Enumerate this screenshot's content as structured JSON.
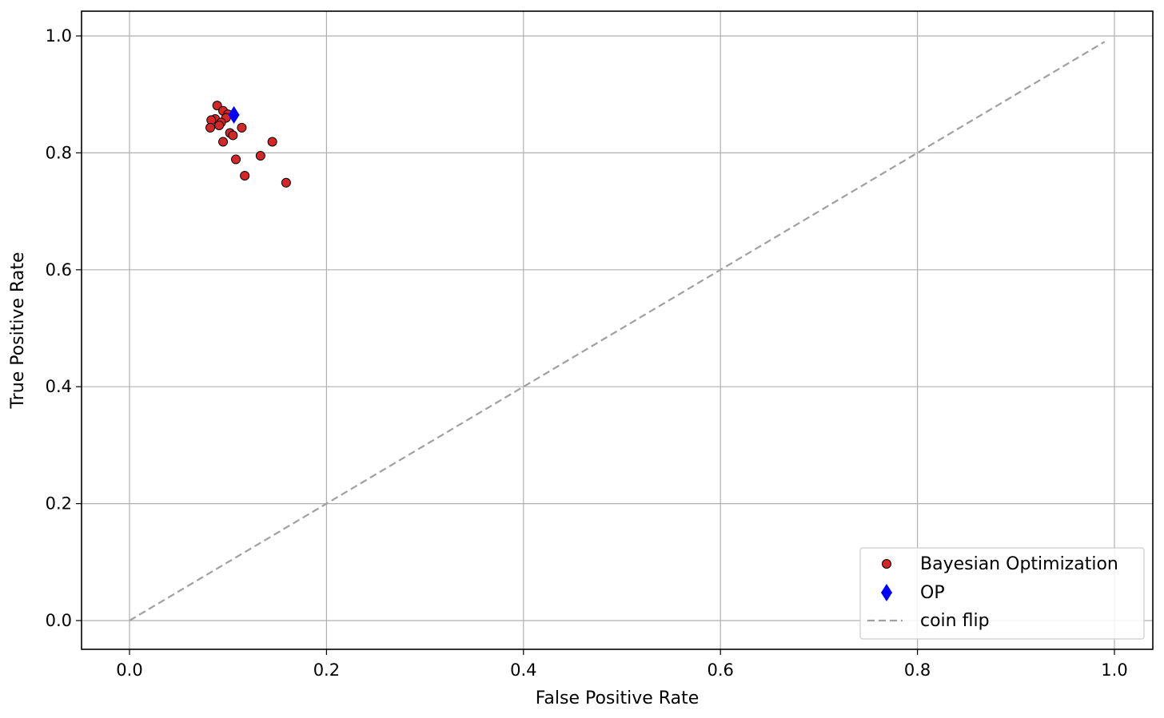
{
  "chart_data": {
    "type": "scatter",
    "xlabel": "False Positive Rate",
    "ylabel": "True Positive Rate",
    "xlim": [
      -0.05,
      1.04
    ],
    "ylim": [
      -0.05,
      1.04
    ],
    "xticks": [
      0.0,
      0.2,
      0.4,
      0.6,
      0.8,
      1.0
    ],
    "yticks": [
      0.0,
      0.2,
      0.4,
      0.6,
      0.8,
      1.0
    ],
    "xtick_labels": [
      "0.0",
      "0.2",
      "0.4",
      "0.6",
      "0.8",
      "1.0"
    ],
    "ytick_labels": [
      "0.0",
      "0.2",
      "0.4",
      "0.6",
      "0.8",
      "1.0"
    ],
    "grid": true,
    "legend_position": "lower-right",
    "series": [
      {
        "name": "Bayesian Optimization",
        "marker": "circle",
        "color": "#d62728",
        "edge_color": "#000000",
        "points": [
          [
            0.089,
            0.881
          ],
          [
            0.095,
            0.872
          ],
          [
            0.1,
            0.866
          ],
          [
            0.098,
            0.86
          ],
          [
            0.087,
            0.858
          ],
          [
            0.083,
            0.856
          ],
          [
            0.093,
            0.852
          ],
          [
            0.091,
            0.847
          ],
          [
            0.082,
            0.843
          ],
          [
            0.114,
            0.843
          ],
          [
            0.102,
            0.834
          ],
          [
            0.105,
            0.83
          ],
          [
            0.095,
            0.819
          ],
          [
            0.145,
            0.819
          ],
          [
            0.133,
            0.795
          ],
          [
            0.108,
            0.789
          ],
          [
            0.117,
            0.761
          ],
          [
            0.159,
            0.749
          ]
        ]
      },
      {
        "name": "OP",
        "marker": "diamond",
        "color": "#0000ff",
        "points": [
          [
            0.106,
            0.865
          ]
        ]
      },
      {
        "name": "coin flip",
        "marker": "dashed-line",
        "color": "#a0a0a0",
        "points": [
          [
            0.0,
            0.0
          ],
          [
            0.99,
            0.99
          ]
        ]
      }
    ]
  }
}
